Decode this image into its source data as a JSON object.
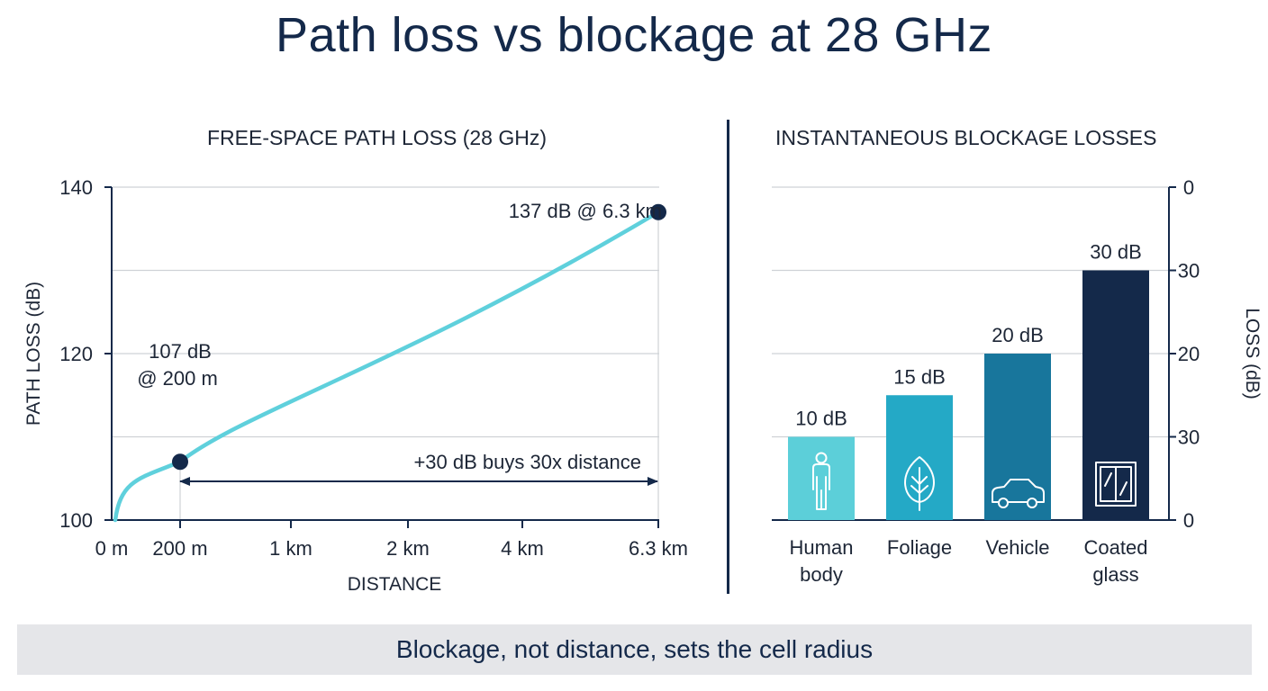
{
  "title": "Path loss vs blockage at 28 GHz",
  "caption": "Blockage, not distance, sets the cell radius",
  "colors": {
    "navy": "#14294a",
    "line": "#5fd0dc",
    "grid": "#cfd2d6",
    "bar_human": "#5ccfd9",
    "bar_foliage": "#24a9c6",
    "bar_vehicle": "#18769c",
    "bar_glass": "#14294a",
    "caption_bg": "#e5e6e9"
  },
  "chart_data": [
    {
      "type": "line",
      "title": "FREE-SPACE PATH LOSS (28 GHz)",
      "xlabel": "DISTANCE",
      "ylabel": "PATH LOSS (dB)",
      "x_ticks": [
        "0 m",
        "200 m",
        "1 km",
        "2 km",
        "4 km",
        "6.3 km"
      ],
      "ylim": [
        100,
        140
      ],
      "y_ticks": [
        100,
        120,
        140
      ],
      "grid": true,
      "series": [
        {
          "points": [
            {
              "x": "0 m",
              "y": 100
            },
            {
              "x": "200 m",
              "y": 107
            },
            {
              "x": "6.3 km",
              "y": 137
            }
          ],
          "color": "#5fd0dc"
        }
      ],
      "annotations": [
        {
          "text_lines": [
            "107 dB",
            "@ 200 m"
          ],
          "x": "200 m",
          "y": 107
        },
        {
          "text_lines": [
            "137 dB @ 6.3 km"
          ],
          "x": "6.3 km",
          "y": 137
        },
        {
          "text": "+30 dB buys 30x distance",
          "from": "200 m",
          "to": "6.3 km"
        }
      ]
    },
    {
      "type": "bar",
      "title": "INSTANTANEOUS BLOCKAGE LOSSES",
      "ylabel": "LOSS (dB)",
      "y_axis_side": "right",
      "y_tick_labels": [
        "0",
        "30",
        "20",
        "30",
        "0"
      ],
      "ylim": [
        0,
        40
      ],
      "categories": [
        {
          "label_lines": [
            "Human",
            "body"
          ],
          "icon": "person-icon",
          "color": "#5ccfd9"
        },
        {
          "label_lines": [
            "Foliage"
          ],
          "icon": "leaf-icon",
          "color": "#24a9c6"
        },
        {
          "label_lines": [
            "Vehicle"
          ],
          "icon": "car-icon",
          "color": "#18769c"
        },
        {
          "label_lines": [
            "Coated",
            "glass"
          ],
          "icon": "window-icon",
          "color": "#14294a"
        }
      ],
      "values": [
        10,
        15,
        20,
        30
      ],
      "data_labels": [
        "10 dB",
        "15 dB",
        "20 dB",
        "30 dB"
      ]
    }
  ]
}
